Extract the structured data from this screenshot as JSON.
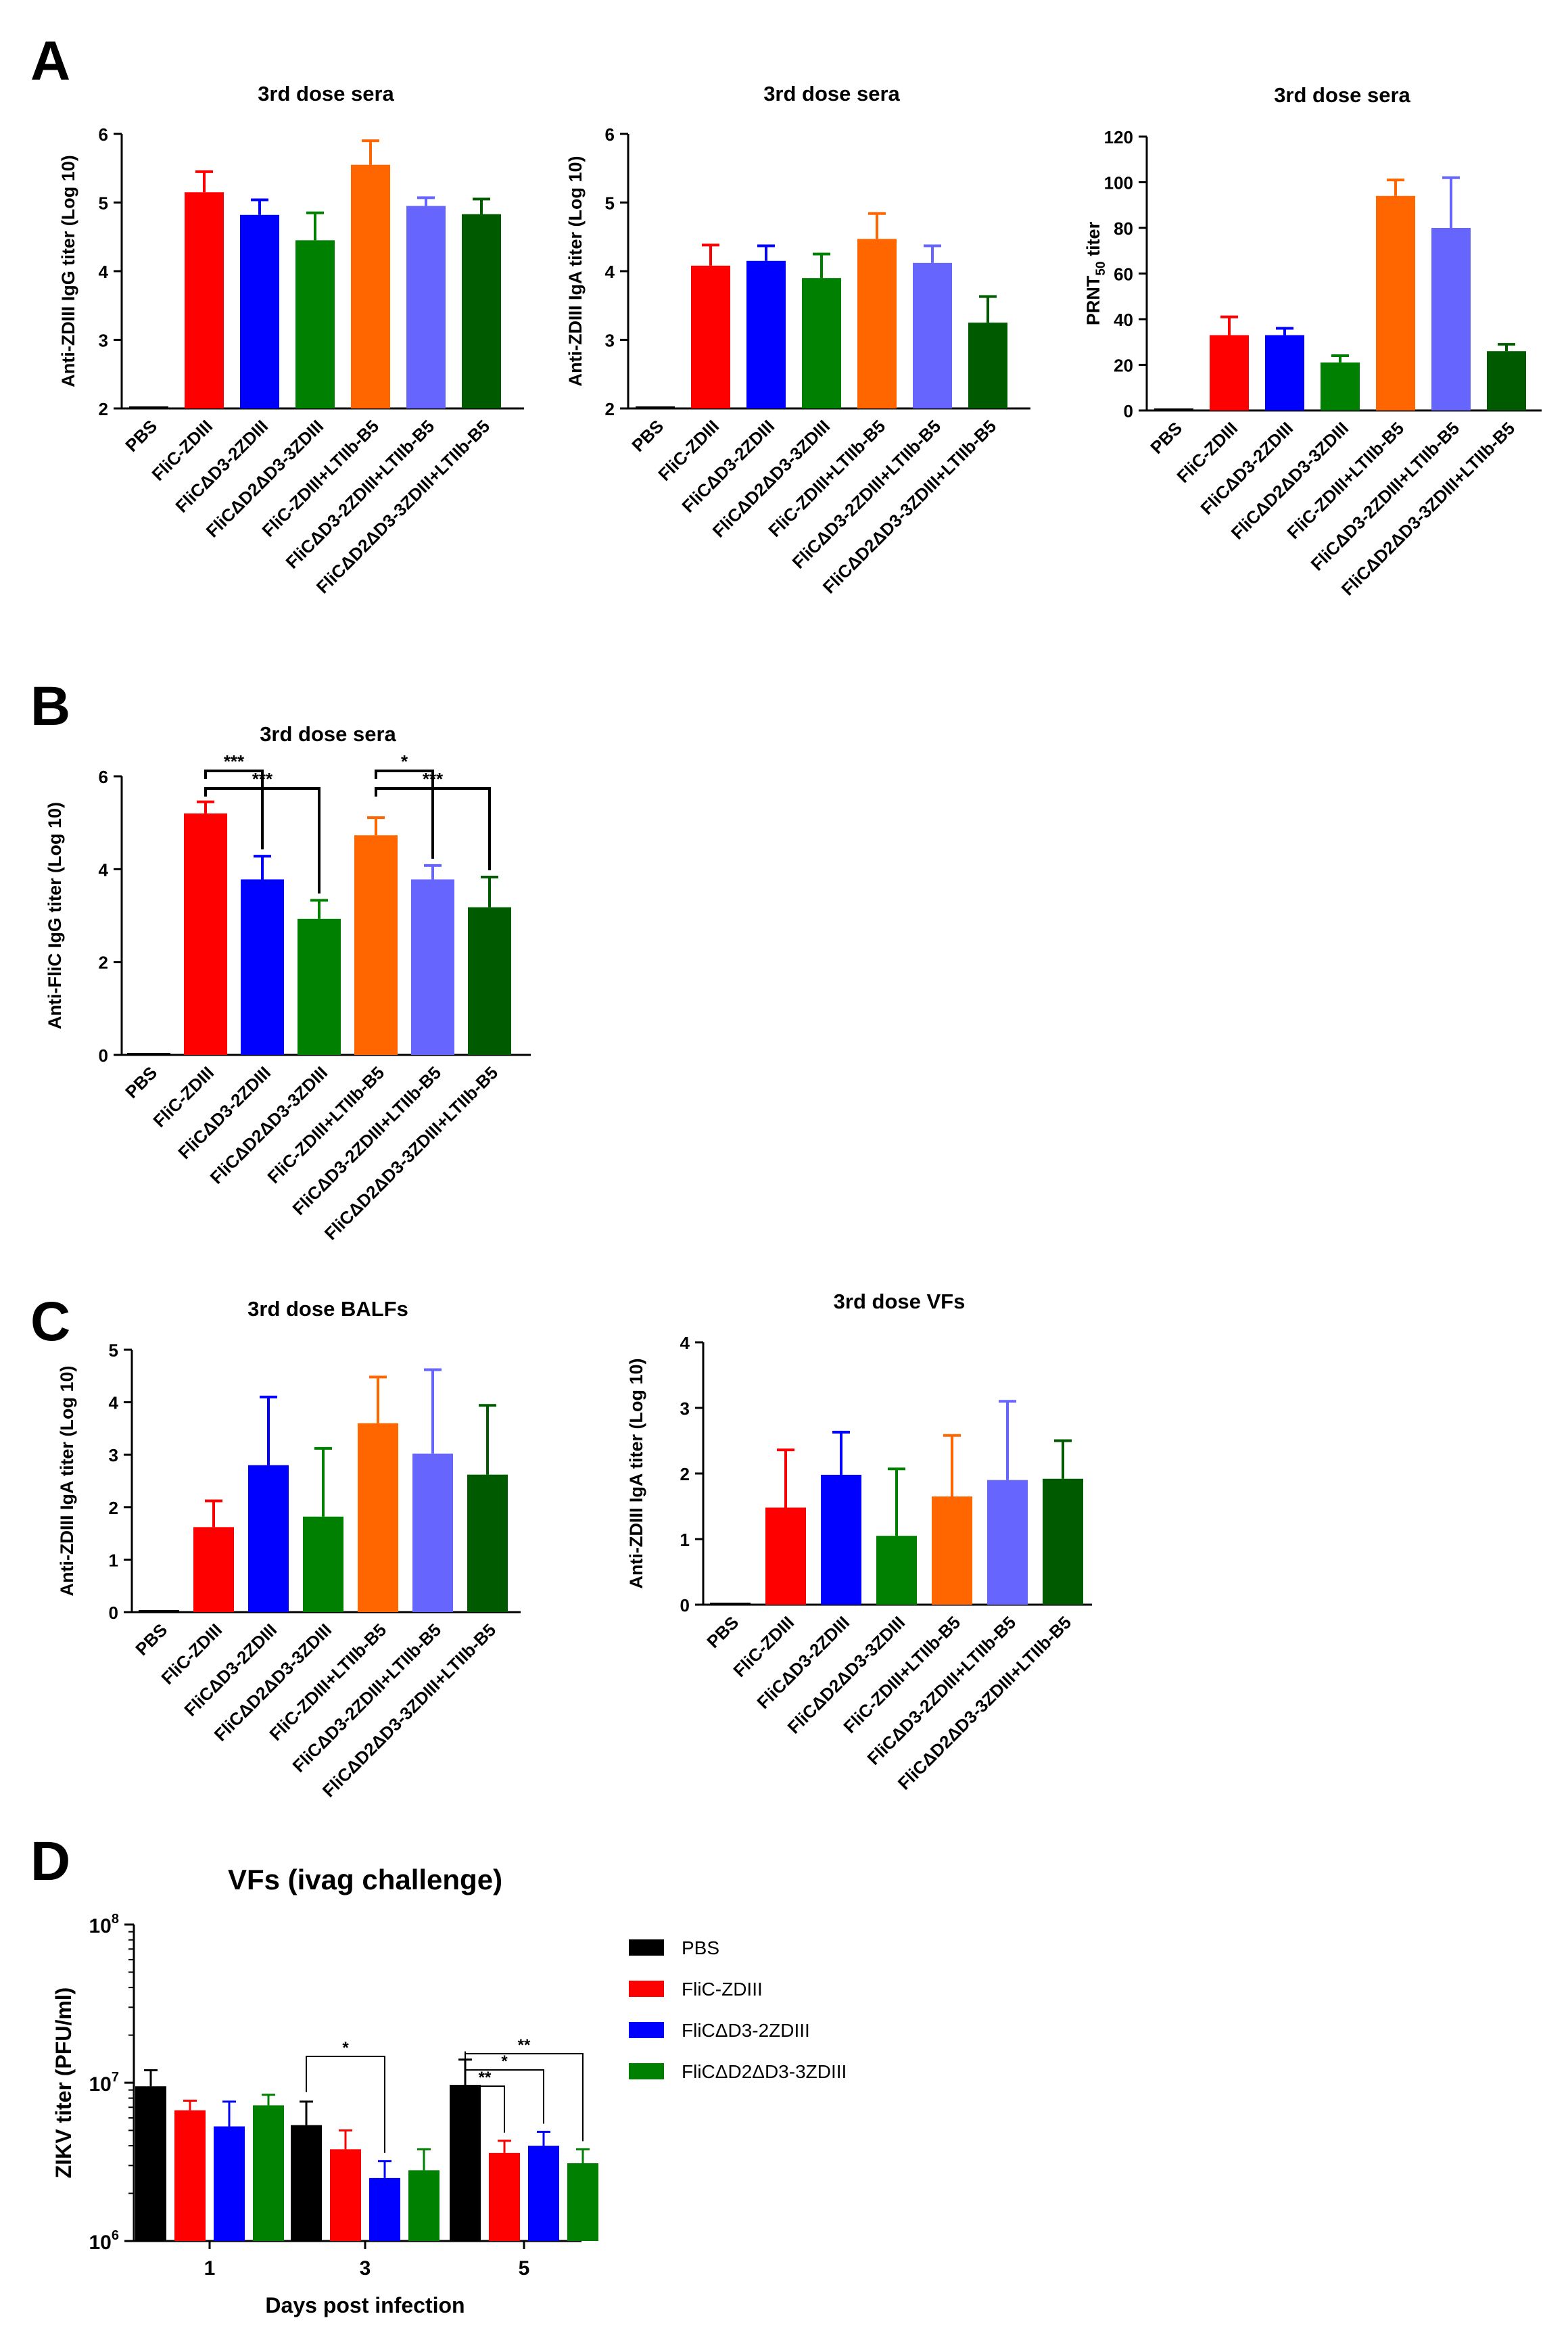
{
  "panel_labels": [
    "A",
    "B",
    "C",
    "D"
  ],
  "colors": {
    "PBS": "#000000",
    "FliC-ZDIII": "#ff0000",
    "FliCΔD3-2ZDIII": "#0000ff",
    "FliCΔD2ΔD3-3ZDIII": "#008000",
    "FliC-ZDIII+LTIIb-B5": "#ff6600",
    "FliCΔD3-2ZDIII+LTIIb-B5": "#6666ff",
    "FliCΔD2ΔD3-3ZDIII+LTIIb-B5": "#005a00"
  },
  "chart_data": [
    {
      "type": "bar",
      "panel": "A",
      "title": "3rd dose sera",
      "ylabel": "Anti-ZDIII IgG titer (Log 10)",
      "ylim": [
        2,
        6
      ],
      "yticks": [
        2,
        3,
        4,
        5,
        6
      ],
      "categories": [
        "PBS",
        "FliC-ZDIII",
        "FliCΔD3-2ZDIII",
        "FliCΔD2ΔD3-3ZDIII",
        "FliC-ZDIII+LTIIb-B5",
        "FliCΔD3-2ZDIII+LTIIb-B5",
        "FliCΔD2ΔD3-3ZDIII+LTIIb-B5"
      ],
      "values": [
        2.0,
        5.15,
        4.82,
        4.45,
        5.55,
        4.95,
        4.83
      ],
      "errors": [
        0,
        0.3,
        0.22,
        0.4,
        0.35,
        0.12,
        0.22
      ]
    },
    {
      "type": "bar",
      "panel": "A",
      "title": "3rd dose sera",
      "ylabel": "Anti-ZDIII IgA titer (Log 10)",
      "ylim": [
        2,
        6
      ],
      "yticks": [
        2,
        3,
        4,
        5,
        6
      ],
      "categories": [
        "PBS",
        "FliC-ZDIII",
        "FliCΔD3-2ZDIII",
        "FliCΔD2ΔD3-3ZDIII",
        "FliC-ZDIII+LTIIb-B5",
        "FliCΔD3-2ZDIII+LTIIb-B5",
        "FliCΔD2ΔD3-3ZDIII+LTIIb-B5"
      ],
      "values": [
        2.0,
        4.08,
        4.15,
        3.9,
        4.47,
        4.12,
        3.25
      ],
      "errors": [
        0,
        0.3,
        0.22,
        0.35,
        0.37,
        0.25,
        0.38
      ]
    },
    {
      "type": "bar",
      "panel": "A",
      "title": "3rd dose sera",
      "ylabel": "PRNT50 titer",
      "ylabel_main": "PRNT",
      "ylabel_sub": "50",
      "ylabel_rest": " titer",
      "ylim": [
        0,
        120
      ],
      "yticks": [
        0,
        20,
        40,
        60,
        80,
        100,
        120
      ],
      "categories": [
        "PBS",
        "FliC-ZDIII",
        "FliCΔD3-2ZDIII",
        "FliCΔD2ΔD3-3ZDIII",
        "FliC-ZDIII+LTIIb-B5",
        "FliCΔD3-2ZDIII+LTIIb-B5",
        "FliCΔD2ΔD3-3ZDIII+LTIIb-B5"
      ],
      "values": [
        0,
        33,
        33,
        21,
        94,
        80,
        26
      ],
      "errors": [
        0,
        8,
        3,
        3,
        7,
        22,
        3
      ]
    },
    {
      "type": "bar",
      "panel": "B",
      "title": "3rd dose sera",
      "ylabel": "Anti-FliC IgG titer (Log 10)",
      "ylim": [
        0,
        6
      ],
      "yticks": [
        0,
        2,
        4,
        6
      ],
      "categories": [
        "PBS",
        "FliC-ZDIII",
        "FliCΔD3-2ZDIII",
        "FliCΔD2ΔD3-3ZDIII",
        "FliC-ZDIII+LTIIb-B5",
        "FliCΔD3-2ZDIII+LTIIb-B5",
        "FliCΔD2ΔD3-3ZDIII+LTIIb-B5"
      ],
      "values": [
        0,
        5.2,
        3.78,
        2.93,
        4.73,
        3.78,
        3.18
      ],
      "errors": [
        0,
        0.25,
        0.5,
        0.4,
        0.38,
        0.3,
        0.65
      ],
      "annotations": [
        {
          "from": 1,
          "to": 2,
          "label": "***",
          "level": 0
        },
        {
          "from": 1,
          "to": 3,
          "label": "***",
          "level": 1
        },
        {
          "from": 4,
          "to": 5,
          "label": "*",
          "level": 0
        },
        {
          "from": 4,
          "to": 6,
          "label": "***",
          "level": 1
        }
      ]
    },
    {
      "type": "bar",
      "panel": "C",
      "title": "3rd dose BALFs",
      "ylabel": "Anti-ZDIII IgA titer (Log 10)",
      "ylim": [
        0,
        5
      ],
      "yticks": [
        0,
        1,
        2,
        3,
        4,
        5
      ],
      "categories": [
        "PBS",
        "FliC-ZDIII",
        "FliCΔD3-2ZDIII",
        "FliCΔD2ΔD3-3ZDIII",
        "FliC-ZDIII+LTIIb-B5",
        "FliCΔD3-2ZDIII+LTIIb-B5",
        "FliCΔD2ΔD3-3ZDIII+LTIIb-B5"
      ],
      "values": [
        0,
        1.62,
        2.8,
        1.82,
        3.6,
        3.02,
        2.62
      ],
      "errors": [
        0,
        0.5,
        1.3,
        1.3,
        0.88,
        1.6,
        1.32
      ]
    },
    {
      "type": "bar",
      "panel": "C",
      "title": "3rd dose VFs",
      "ylabel": "Anti-ZDIII IgA titer (Log 10)",
      "ylim": [
        0,
        4
      ],
      "yticks": [
        0,
        1,
        2,
        3,
        4
      ],
      "categories": [
        "PBS",
        "FliC-ZDIII",
        "FliCΔD3-2ZDIII",
        "FliCΔD2ΔD3-3ZDIII",
        "FliC-ZDIII+LTIIb-B5",
        "FliCΔD3-2ZDIII+LTIIb-B5",
        "FliCΔD2ΔD3-3ZDIII+LTIIb-B5"
      ],
      "values": [
        0,
        1.48,
        1.98,
        1.05,
        1.65,
        1.9,
        1.92
      ],
      "errors": [
        0,
        0.88,
        0.65,
        1.02,
        0.93,
        1.2,
        0.58
      ]
    },
    {
      "type": "bar",
      "panel": "D",
      "title": "VFs (ivag challenge)",
      "xlabel": "Days post infection",
      "ylabel": "ZIKV titer (PFU/ml)",
      "yscale": "log",
      "ylim": [
        1000000,
        100000000
      ],
      "yticks": [
        {
          "value": 1000000,
          "base": "10",
          "exp": "6"
        },
        {
          "value": 10000000,
          "base": "10",
          "exp": "7"
        },
        {
          "value": 100000000,
          "base": "10",
          "exp": "8"
        }
      ],
      "categories": [
        "1",
        "3",
        "5"
      ],
      "series": [
        {
          "name": "PBS",
          "values": [
            9500000,
            5400000,
            9700000
          ],
          "errors": [
            2500000,
            2200000,
            4300000
          ]
        },
        {
          "name": "FliC-ZDIII",
          "values": [
            6700000,
            3800000,
            3600000
          ],
          "errors": [
            1000000,
            1200000,
            700000
          ]
        },
        {
          "name": "FliCΔD3-2ZDIII",
          "values": [
            5300000,
            2500000,
            4000000
          ],
          "errors": [
            2300000,
            700000,
            900000
          ]
        },
        {
          "name": "FliCΔD2ΔD3-3ZDIII",
          "values": [
            7200000,
            2800000,
            3100000
          ],
          "errors": [
            1200000,
            1000000,
            700000
          ]
        }
      ],
      "annotations": [
        {
          "group": 1,
          "from": 0,
          "to": 2,
          "label": "*",
          "level": 0
        },
        {
          "group": 2,
          "from": 0,
          "to": 1,
          "label": "**",
          "level": 0
        },
        {
          "group": 2,
          "from": 0,
          "to": 2,
          "label": "*",
          "level": 1
        },
        {
          "group": 2,
          "from": 0,
          "to": 3,
          "label": "**",
          "level": 2
        }
      ]
    }
  ]
}
